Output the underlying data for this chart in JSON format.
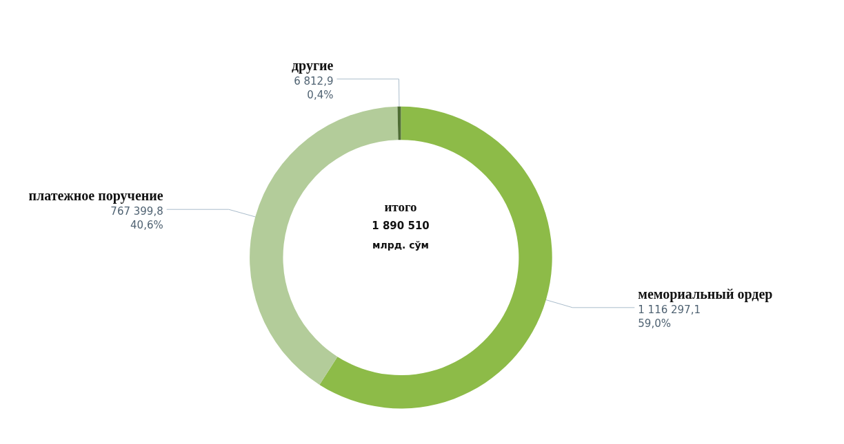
{
  "chart_data": {
    "type": "donut",
    "categories": [
      "мемориальный ордер",
      "платежное поручение",
      "другие"
    ],
    "values": [
      1116297.1,
      767399.8,
      6812.9
    ],
    "colors": [
      "#8dbb48",
      "#b3cc9a",
      "#4f6e34"
    ],
    "value_labels": [
      "1 116 297,1\n59,0%",
      "767 399,8\n40,6%",
      "6 812,9\n0,4%"
    ],
    "annotations": [
      "итого",
      "1 890 510",
      "млрд. сўм"
    ],
    "legend": false
  }
}
